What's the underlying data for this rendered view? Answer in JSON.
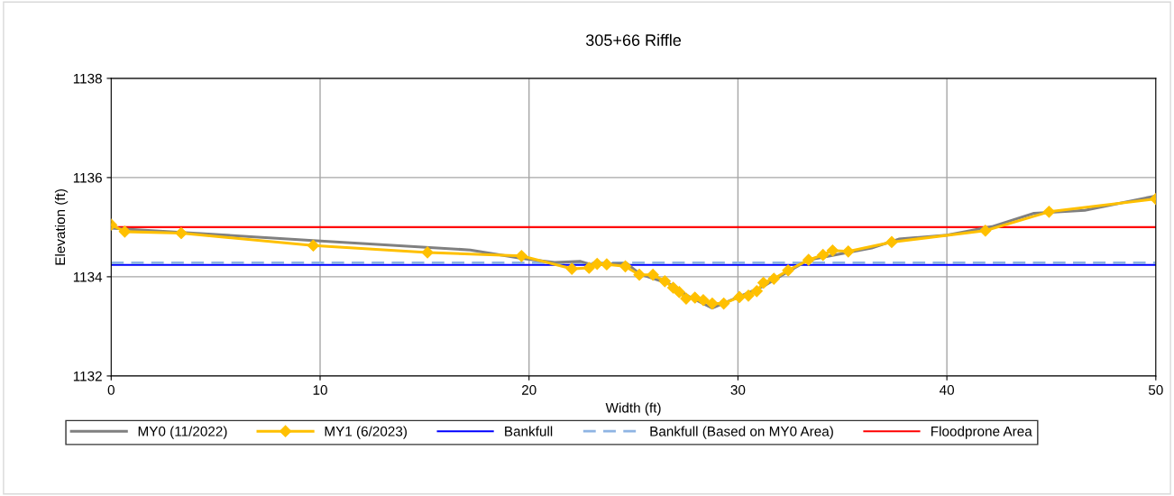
{
  "chart_data": {
    "type": "line",
    "title": "305+66 Riffle",
    "xlabel": "Width (ft)",
    "ylabel": "Elevation (ft)",
    "xlim": [
      0,
      50
    ],
    "xticks": [
      0,
      10,
      20,
      30,
      40,
      50
    ],
    "ylim": [
      1132,
      1138
    ],
    "yticks": [
      1132,
      1134,
      1136,
      1138
    ],
    "grid": true,
    "legend": "bottom",
    "series": [
      {
        "name": "MY0 (11/2022)",
        "color": "#808080",
        "marker": "none",
        "x": [
          0,
          9.67,
          17.19,
          19.64,
          21.22,
          22.47,
          22.95,
          24.67,
          25.32,
          26.76,
          27.62,
          28.77,
          30.07,
          31.22,
          32.38,
          33.38,
          36.4,
          37.7,
          40.0,
          42.15,
          44.17,
          46.6,
          50
        ],
        "values": [
          1134.98,
          1134.73,
          1134.54,
          1134.37,
          1134.29,
          1134.31,
          1134.25,
          1134.27,
          1134.05,
          1133.85,
          1133.61,
          1133.37,
          1133.6,
          1133.81,
          1134.1,
          1134.34,
          1134.58,
          1134.76,
          1134.84,
          1135.01,
          1135.28,
          1135.34,
          1135.63
        ]
      },
      {
        "name": "MY1 (6/2023)",
        "color": "#ffc000",
        "marker": "diamond",
        "x": [
          0,
          0.65,
          3.35,
          9.67,
          15.14,
          19.64,
          22.05,
          22.87,
          23.26,
          23.72,
          24.61,
          25.28,
          25.93,
          26.5,
          26.9,
          27.19,
          27.52,
          27.94,
          28.34,
          28.77,
          29.32,
          30.07,
          30.5,
          30.9,
          31.22,
          31.72,
          32.4,
          33.38,
          34.07,
          34.53,
          35.28,
          37.36,
          41.84,
          44.89,
          50
        ],
        "values": [
          1135.05,
          1134.91,
          1134.88,
          1134.63,
          1134.49,
          1134.42,
          1134.16,
          1134.18,
          1134.26,
          1134.25,
          1134.21,
          1134.04,
          1134.04,
          1133.91,
          1133.78,
          1133.69,
          1133.56,
          1133.58,
          1133.53,
          1133.46,
          1133.46,
          1133.59,
          1133.62,
          1133.71,
          1133.88,
          1133.96,
          1134.13,
          1134.34,
          1134.44,
          1134.53,
          1134.51,
          1134.7,
          1134.93,
          1135.31,
          1135.57
        ]
      }
    ],
    "ref_lines": [
      {
        "axis": "y",
        "value": 1134.24,
        "label": "Bankfull",
        "color": "#0000ff",
        "line_style": "solid"
      },
      {
        "axis": "y",
        "value": 1134.28,
        "label": "Bankfull (Based on MY0 Area)",
        "color": "#8eb4e3",
        "line_style": "dashed"
      },
      {
        "axis": "y",
        "value": 1135.0,
        "label": "Floodprone Area",
        "color": "#ff0000",
        "line_style": "solid"
      }
    ]
  }
}
